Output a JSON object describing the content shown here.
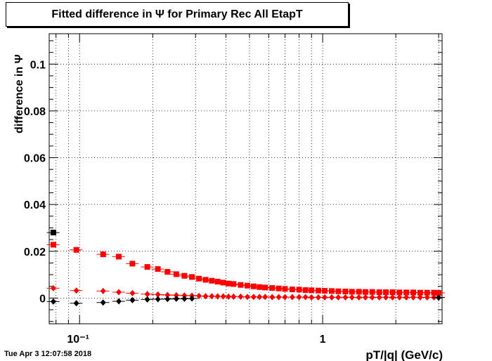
{
  "chart_data": {
    "type": "scatter",
    "title": "Fitted difference in  Ψ  for Primary Rec All EtapT",
    "xlabel": "pT/|q| (GeV/c)",
    "ylabel": "difference in  Ψ",
    "x_scale": "log",
    "xlim": [
      0.075,
      3.1
    ],
    "ylim": [
      -0.011,
      0.113
    ],
    "grid": true,
    "yticks": [
      0,
      0.02,
      0.04,
      0.06,
      0.08,
      0.1
    ],
    "ytick_labels": [
      "0",
      "0.02",
      "0.04",
      "0.06",
      "0.08",
      "0.1"
    ],
    "xticks": [
      0.1,
      1
    ],
    "xtick_labels": [
      "10⁻¹",
      "1"
    ],
    "series": [
      {
        "marker": "square",
        "color": "#000000",
        "x": [
          0.078
        ],
        "y": [
          0.028
        ]
      },
      {
        "marker": "square",
        "color": "#ff0000",
        "x": [
          0.078,
          0.097,
          0.125,
          0.145,
          0.165,
          0.19,
          0.21,
          0.23,
          0.25,
          0.27,
          0.29,
          0.31,
          0.33,
          0.35,
          0.37,
          0.39,
          0.41,
          0.43,
          0.46,
          0.49,
          0.52,
          0.55,
          0.58,
          0.62,
          0.66,
          0.7,
          0.75,
          0.8,
          0.85,
          0.9,
          0.96,
          1.02,
          1.09,
          1.16,
          1.24,
          1.32,
          1.41,
          1.5,
          1.6,
          1.71,
          1.82,
          1.94,
          2.07,
          2.21,
          2.36,
          2.52,
          2.69,
          2.87,
          3.0
        ],
        "y": [
          0.0228,
          0.0206,
          0.0187,
          0.0177,
          0.0147,
          0.0133,
          0.0124,
          0.0112,
          0.0102,
          0.0095,
          0.009,
          0.0083,
          0.0078,
          0.0074,
          0.007,
          0.0066,
          0.0062,
          0.006,
          0.0056,
          0.0053,
          0.005,
          0.0047,
          0.0045,
          0.0043,
          0.0041,
          0.0039,
          0.0037,
          0.0036,
          0.0034,
          0.0033,
          0.0032,
          0.0031,
          0.003,
          0.0029,
          0.0028,
          0.0027,
          0.0027,
          0.0026,
          0.0026,
          0.0025,
          0.0025,
          0.0025,
          0.0024,
          0.0024,
          0.0024,
          0.0023,
          0.0023,
          0.0023,
          0.0022
        ]
      },
      {
        "marker": "diamond",
        "color": "#ff0000",
        "x": [
          0.078,
          0.097,
          0.125,
          0.145,
          0.165,
          0.19,
          0.21,
          0.23,
          0.25,
          0.27,
          0.29,
          0.31,
          0.33,
          0.35,
          0.37,
          0.39,
          0.41,
          0.43,
          0.46,
          0.49,
          0.52,
          0.55,
          0.58,
          0.62,
          0.66,
          0.7,
          0.75,
          0.8,
          0.85,
          0.9,
          0.96,
          1.02,
          1.09,
          1.16,
          1.24,
          1.32,
          1.41,
          1.5,
          1.6,
          1.71,
          1.82,
          1.94,
          2.07,
          2.21,
          2.36,
          2.52,
          2.69,
          2.87,
          3.0
        ],
        "y": [
          0.0042,
          0.0032,
          0.003,
          0.0025,
          0.0021,
          0.0017,
          0.0015,
          0.0013,
          0.0012,
          0.0011,
          0.001,
          0.0009,
          0.0008,
          0.0008,
          0.0007,
          0.0007,
          0.0006,
          0.0006,
          0.0006,
          0.0005,
          0.0005,
          0.0005,
          0.0005,
          0.0004,
          0.0004,
          0.0004,
          0.0004,
          0.0004,
          0.0004,
          0.0003,
          0.0003,
          0.0003,
          0.0003,
          0.0003,
          0.0003,
          0.0003,
          0.0003,
          0.0003,
          0.0003,
          0.0003,
          0.0003,
          0.0003,
          0.0003,
          0.0003,
          0.0003,
          0.0003,
          0.0003,
          0.0003,
          0.0003
        ]
      },
      {
        "marker": "diamond",
        "color": "#000000",
        "x": [
          0.078,
          0.097,
          0.125,
          0.145,
          0.165,
          0.19,
          0.21,
          0.23,
          0.25,
          0.27,
          0.29,
          3.0
        ],
        "y": [
          -0.0015,
          -0.0022,
          -0.0019,
          -0.0014,
          -0.0009,
          -0.0006,
          -0.0005,
          -0.0004,
          -0.0003,
          -0.0003,
          -0.0002,
          0.0002
        ]
      }
    ]
  },
  "footer": {
    "timestamp": "Tue Apr  3 12:07:58 2018"
  }
}
